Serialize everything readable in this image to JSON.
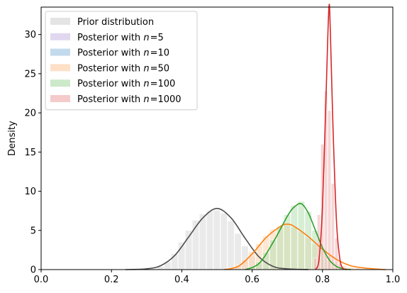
{
  "chart_data": {
    "type": "area",
    "title": "",
    "xlabel": "",
    "ylabel": "Density",
    "xlim": [
      0.0,
      1.0
    ],
    "ylim": [
      0,
      33.5
    ],
    "xticks": [
      "0.0",
      "0.2",
      "0.4",
      "0.6",
      "0.8",
      "1.0"
    ],
    "yticks": [
      "0",
      "5",
      "10",
      "15",
      "20",
      "25",
      "30"
    ],
    "grid": false,
    "legend_position": "top-left",
    "series": [
      {
        "name": "Prior distribution",
        "patch_color": "#d9d9d9",
        "line_color": "#4d4d4d",
        "hist": [
          [
            0.32,
            0.1
          ],
          [
            0.34,
            0.4
          ],
          [
            0.36,
            1.0
          ],
          [
            0.38,
            2.0
          ],
          [
            0.4,
            3.5
          ],
          [
            0.42,
            5.0
          ],
          [
            0.44,
            6.3
          ],
          [
            0.46,
            7.1
          ],
          [
            0.48,
            7.5
          ],
          [
            0.5,
            7.6
          ],
          [
            0.52,
            7.2
          ],
          [
            0.54,
            6.2
          ],
          [
            0.56,
            4.6
          ],
          [
            0.58,
            3.0
          ],
          [
            0.6,
            1.7
          ],
          [
            0.62,
            0.8
          ],
          [
            0.64,
            0.3
          ]
        ],
        "curve": [
          [
            0.24,
            0.0
          ],
          [
            0.3,
            0.1
          ],
          [
            0.34,
            0.5
          ],
          [
            0.38,
            1.8
          ],
          [
            0.42,
            4.2
          ],
          [
            0.46,
            6.6
          ],
          [
            0.5,
            7.8
          ],
          [
            0.54,
            6.6
          ],
          [
            0.58,
            4.0
          ],
          [
            0.62,
            1.6
          ],
          [
            0.66,
            0.4
          ],
          [
            0.7,
            0.1
          ],
          [
            0.76,
            0.0
          ]
        ]
      },
      {
        "name": "Posterior with $n = 5$",
        "patch_color": "#d4c8ea",
        "line_color": "#9467bd",
        "hist": [],
        "curve": []
      },
      {
        "name": "Posterior with $n = 10$",
        "patch_color": "#a9cbe4",
        "line_color": "#1f77b4",
        "hist": [],
        "curve": []
      },
      {
        "name": "Posterior with $n = 50$",
        "patch_color": "#fdd3ae",
        "line_color": "#ff7f0e",
        "hist": [
          [
            0.54,
            0.2
          ],
          [
            0.56,
            0.6
          ],
          [
            0.58,
            1.3
          ],
          [
            0.6,
            2.3
          ],
          [
            0.62,
            3.3
          ],
          [
            0.64,
            4.3
          ],
          [
            0.66,
            5.1
          ],
          [
            0.68,
            5.6
          ],
          [
            0.7,
            5.7
          ],
          [
            0.72,
            5.4
          ],
          [
            0.74,
            4.8
          ],
          [
            0.76,
            4.0
          ],
          [
            0.78,
            3.2
          ],
          [
            0.8,
            2.4
          ],
          [
            0.82,
            1.7
          ],
          [
            0.84,
            1.0
          ],
          [
            0.86,
            0.5
          ],
          [
            0.88,
            0.3
          ],
          [
            0.9,
            0.2
          ],
          [
            0.92,
            0.1
          ]
        ],
        "curve": [
          [
            0.52,
            0.0
          ],
          [
            0.56,
            0.4
          ],
          [
            0.6,
            2.0
          ],
          [
            0.64,
            4.1
          ],
          [
            0.68,
            5.5
          ],
          [
            0.7,
            5.8
          ],
          [
            0.72,
            5.5
          ],
          [
            0.76,
            4.2
          ],
          [
            0.8,
            2.6
          ],
          [
            0.84,
            1.3
          ],
          [
            0.88,
            0.5
          ],
          [
            0.92,
            0.2
          ],
          [
            0.96,
            0.05
          ],
          [
            0.98,
            0.0
          ]
        ]
      },
      {
        "name": "Posterior with $n = 100$",
        "patch_color": "#b7e0b3",
        "line_color": "#2ca02c",
        "hist": [
          [
            0.6,
            0.3
          ],
          [
            0.62,
            1.0
          ],
          [
            0.64,
            2.2
          ],
          [
            0.66,
            3.8
          ],
          [
            0.68,
            5.5
          ],
          [
            0.7,
            7.0
          ],
          [
            0.72,
            8.2
          ],
          [
            0.74,
            8.7
          ],
          [
            0.76,
            7.4
          ],
          [
            0.78,
            5.0
          ],
          [
            0.8,
            2.7
          ],
          [
            0.82,
            1.2
          ],
          [
            0.84,
            0.4
          ],
          [
            0.86,
            0.1
          ]
        ],
        "curve": [
          [
            0.58,
            0.0
          ],
          [
            0.62,
            0.8
          ],
          [
            0.66,
            3.5
          ],
          [
            0.7,
            6.8
          ],
          [
            0.72,
            8.0
          ],
          [
            0.74,
            8.4
          ],
          [
            0.76,
            7.2
          ],
          [
            0.78,
            5.0
          ],
          [
            0.8,
            2.8
          ],
          [
            0.82,
            1.2
          ],
          [
            0.84,
            0.4
          ],
          [
            0.86,
            0.1
          ],
          [
            0.88,
            0.0
          ]
        ]
      },
      {
        "name": "Posterior with $n = 1000$",
        "patch_color": "#efb5b4",
        "line_color": "#d62728",
        "hist": [
          [
            0.78,
            1.5
          ],
          [
            0.79,
            7.0
          ],
          [
            0.8,
            16.0
          ],
          [
            0.81,
            22.8
          ],
          [
            0.82,
            20.3
          ],
          [
            0.83,
            11.0
          ],
          [
            0.84,
            4.0
          ],
          [
            0.85,
            0.8
          ]
        ],
        "curve": [
          [
            0.78,
            0.0
          ],
          [
            0.79,
            1.2
          ],
          [
            0.8,
            8.0
          ],
          [
            0.81,
            22.0
          ],
          [
            0.818,
            33.2
          ],
          [
            0.822,
            31.0
          ],
          [
            0.83,
            18.0
          ],
          [
            0.84,
            6.0
          ],
          [
            0.85,
            1.2
          ],
          [
            0.86,
            0.1
          ],
          [
            0.87,
            0.0
          ]
        ]
      }
    ]
  }
}
